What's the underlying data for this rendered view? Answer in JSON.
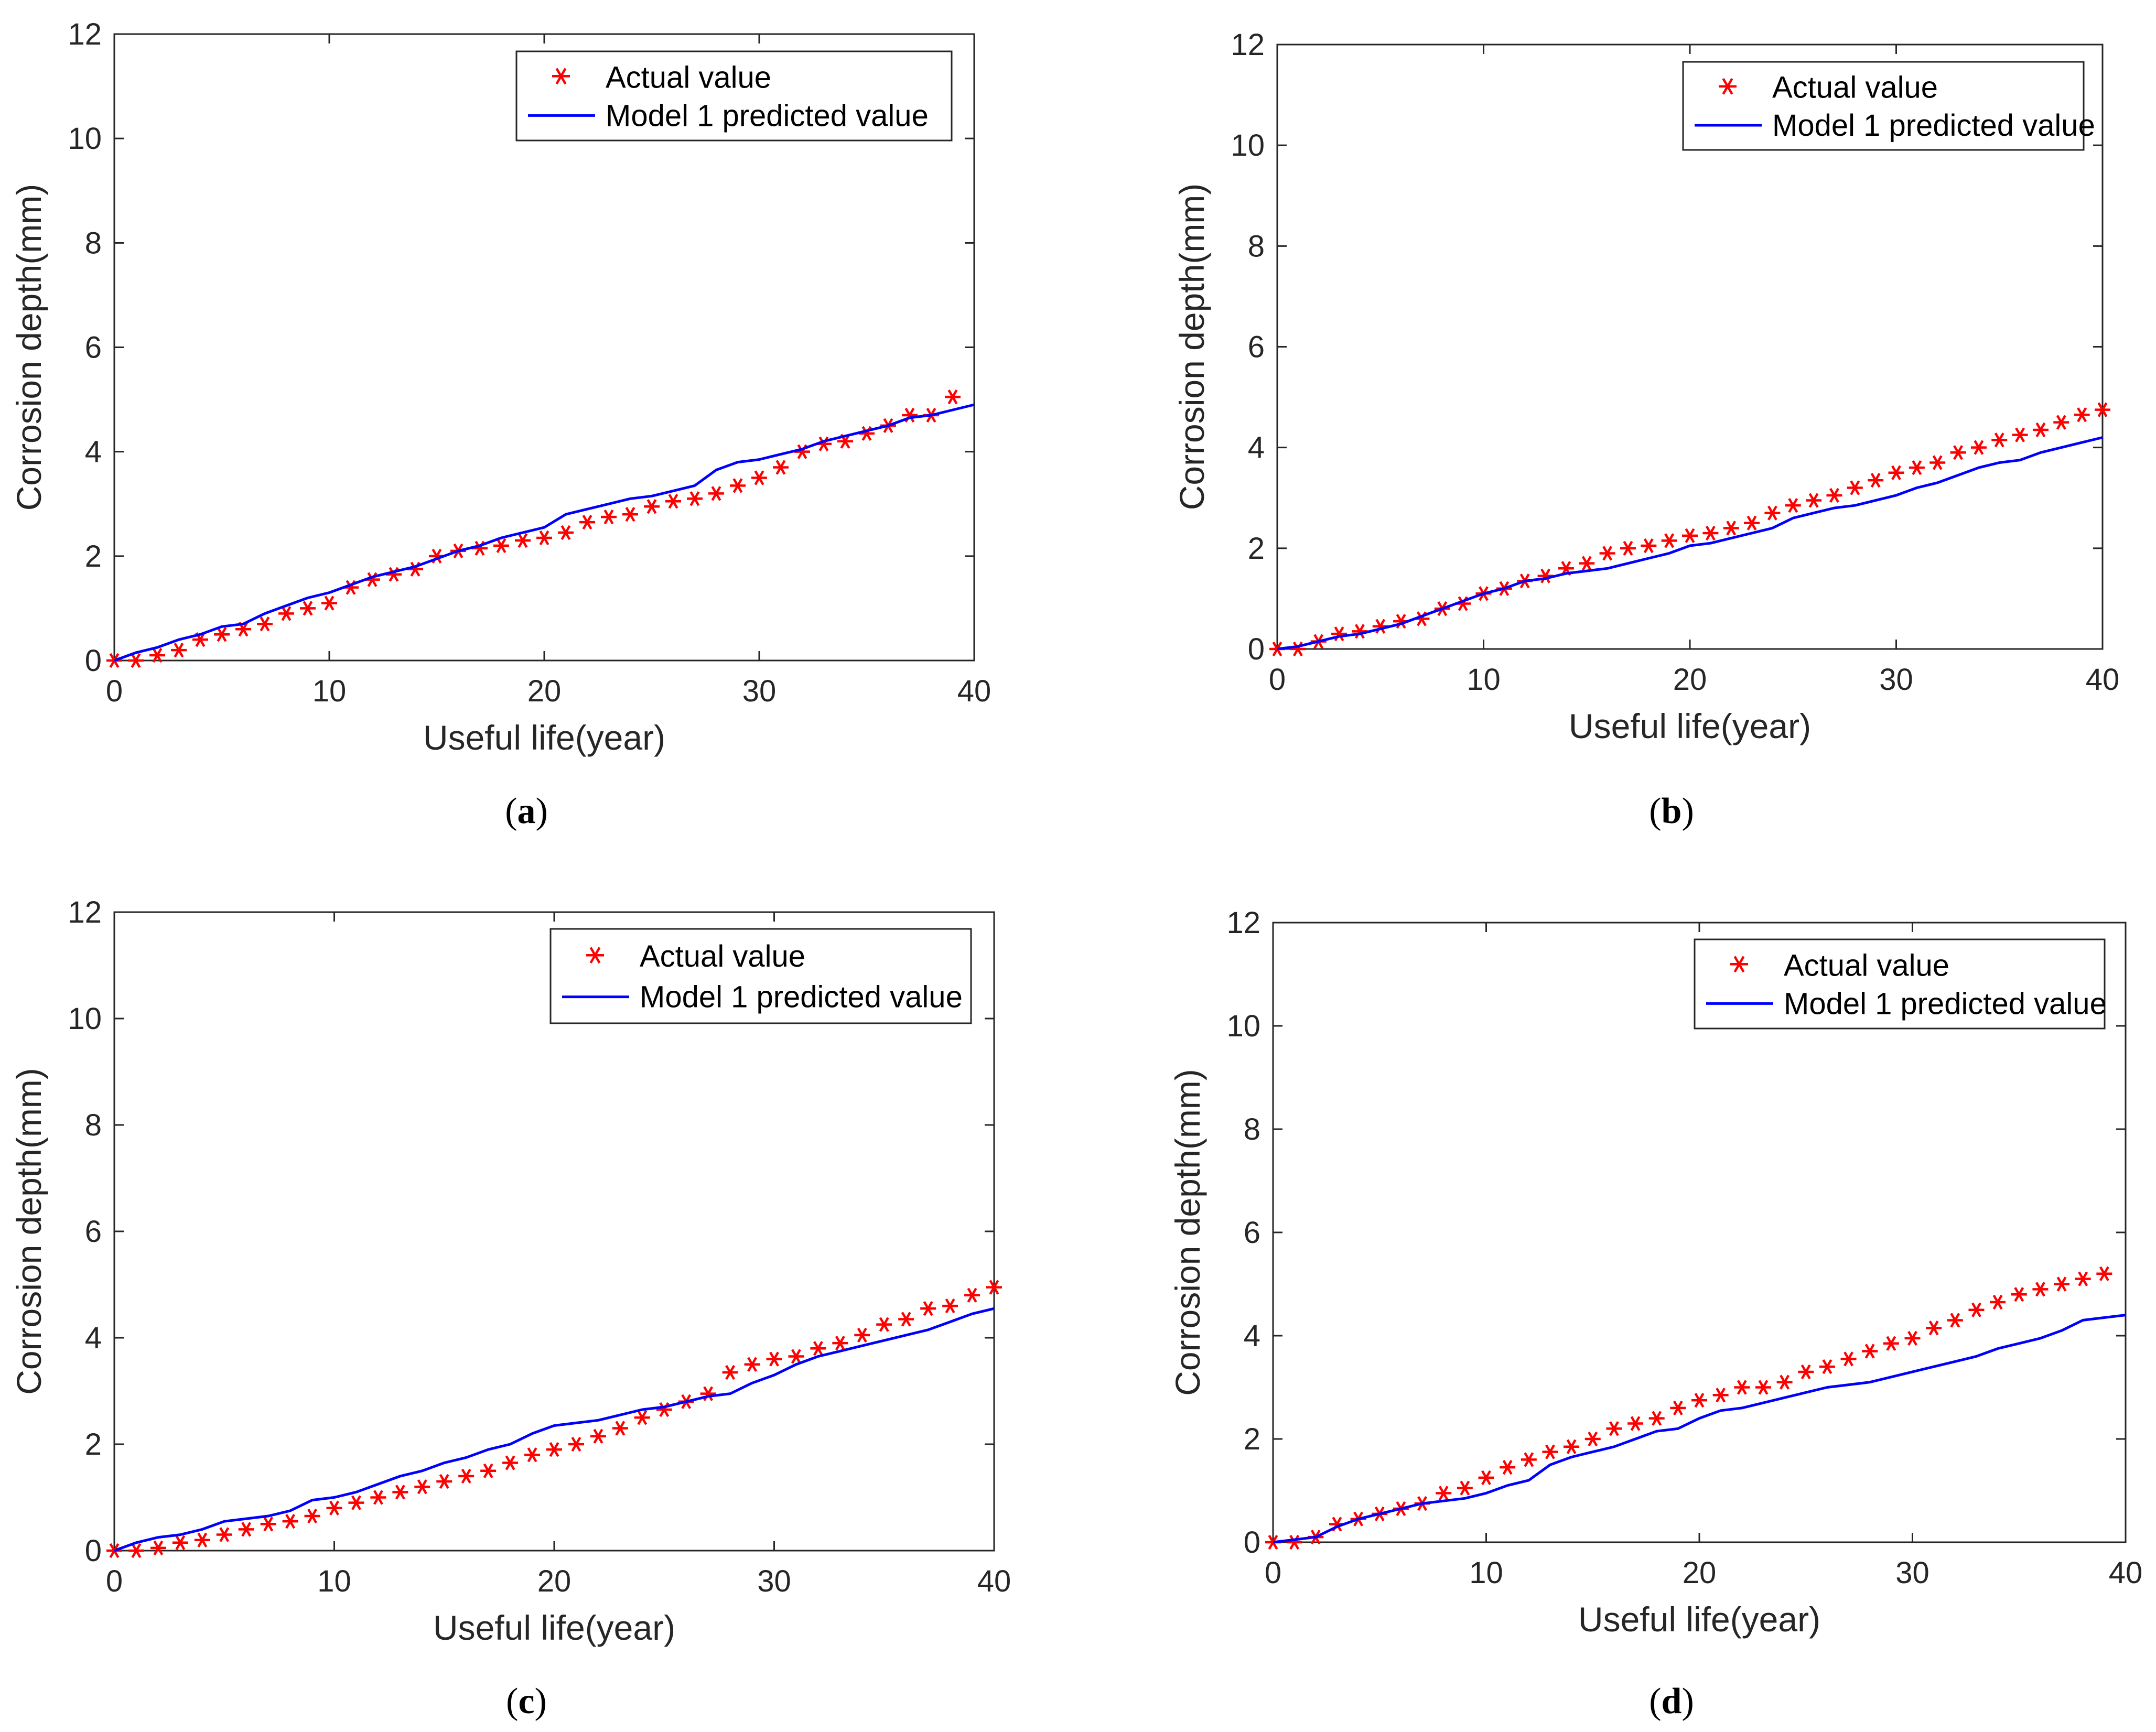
{
  "figure": {
    "colors": {
      "actual": "#ff0000",
      "predicted": "#0000ff",
      "axis": "#262626"
    }
  },
  "chart_data": [
    {
      "type": "line",
      "panel": "a",
      "caption": {
        "open": "(",
        "letter": "a",
        "close": ")"
      },
      "xlabel": "Useful life(year)",
      "ylabel": "Corrosion depth(mm)",
      "xlim": [
        0,
        40
      ],
      "ylim": [
        0,
        12
      ],
      "xticks": [
        0,
        10,
        20,
        30,
        40
      ],
      "yticks": [
        0,
        2,
        4,
        6,
        8,
        10,
        12
      ],
      "legend": {
        "position": "top-right",
        "actual_label": "Actual value",
        "predicted_label": "Model 1 predicted value"
      },
      "series": [
        {
          "name": "Actual value",
          "marker": "asterisk",
          "color": "#ff0000",
          "x": [
            0,
            1,
            2,
            3,
            4,
            5,
            6,
            7,
            8,
            9,
            10,
            11,
            12,
            13,
            14,
            15,
            16,
            17,
            18,
            19,
            20,
            21,
            22,
            23,
            24,
            25,
            26,
            27,
            28,
            29,
            30,
            31,
            32,
            33,
            34,
            35,
            36,
            37,
            38,
            39
          ],
          "values": [
            0,
            0,
            0.1,
            0.2,
            0.4,
            0.5,
            0.6,
            0.7,
            0.9,
            1.0,
            1.1,
            1.4,
            1.55,
            1.65,
            1.75,
            2.0,
            2.1,
            2.15,
            2.2,
            2.3,
            2.35,
            2.45,
            2.65,
            2.75,
            2.8,
            2.95,
            3.05,
            3.1,
            3.2,
            3.35,
            3.5,
            3.7,
            4.0,
            4.15,
            4.2,
            4.35,
            4.5,
            4.7,
            4.7,
            5.05
          ]
        },
        {
          "name": "Model 1 predicted value",
          "line": "solid",
          "color": "#0000ff",
          "x": [
            0,
            1,
            2,
            3,
            4,
            5,
            6,
            7,
            8,
            9,
            10,
            11,
            12,
            13,
            14,
            15,
            16,
            17,
            18,
            19,
            20,
            21,
            22,
            23,
            24,
            25,
            26,
            27,
            28,
            29,
            30,
            31,
            32,
            33,
            34,
            35,
            36,
            37,
            38,
            39,
            40
          ],
          "values": [
            0,
            0.15,
            0.25,
            0.4,
            0.5,
            0.65,
            0.7,
            0.9,
            1.05,
            1.2,
            1.3,
            1.45,
            1.6,
            1.7,
            1.8,
            1.95,
            2.1,
            2.2,
            2.35,
            2.45,
            2.55,
            2.8,
            2.9,
            3.0,
            3.1,
            3.15,
            3.25,
            3.35,
            3.65,
            3.8,
            3.85,
            3.95,
            4.05,
            4.2,
            4.3,
            4.4,
            4.5,
            4.65,
            4.7,
            4.8,
            4.9
          ]
        }
      ]
    },
    {
      "type": "line",
      "panel": "b",
      "caption": {
        "open": "(",
        "letter": "b",
        "close": ")"
      },
      "xlabel": "Useful life(year)",
      "ylabel": "Corrosion depth(mm)",
      "xlim": [
        0,
        40
      ],
      "ylim": [
        0,
        12
      ],
      "xticks": [
        0,
        10,
        20,
        30,
        40
      ],
      "yticks": [
        0,
        2,
        4,
        6,
        8,
        10,
        12
      ],
      "legend": {
        "position": "top-right",
        "actual_label": "Actual value",
        "predicted_label": "Model 1 predicted value"
      },
      "series": [
        {
          "name": "Actual value",
          "marker": "asterisk",
          "color": "#ff0000",
          "x": [
            0,
            1,
            2,
            3,
            4,
            5,
            6,
            7,
            8,
            9,
            10,
            11,
            12,
            13,
            14,
            15,
            16,
            17,
            18,
            19,
            20,
            21,
            22,
            23,
            24,
            25,
            26,
            27,
            28,
            29,
            30,
            31,
            32,
            33,
            34,
            35,
            36,
            37,
            38,
            39,
            40
          ],
          "values": [
            0,
            0,
            0.15,
            0.3,
            0.35,
            0.45,
            0.55,
            0.6,
            0.8,
            0.9,
            1.1,
            1.2,
            1.35,
            1.45,
            1.6,
            1.7,
            1.9,
            2.0,
            2.05,
            2.15,
            2.25,
            2.3,
            2.4,
            2.5,
            2.7,
            2.85,
            2.95,
            3.05,
            3.2,
            3.35,
            3.5,
            3.6,
            3.7,
            3.9,
            4.0,
            4.15,
            4.25,
            4.35,
            4.5,
            4.65,
            4.75
          ]
        },
        {
          "name": "Model 1 predicted value",
          "line": "solid",
          "color": "#0000ff",
          "x": [
            0,
            1,
            2,
            3,
            4,
            5,
            6,
            7,
            8,
            9,
            10,
            11,
            12,
            13,
            14,
            15,
            16,
            17,
            18,
            19,
            20,
            21,
            22,
            23,
            24,
            25,
            26,
            27,
            28,
            29,
            30,
            31,
            32,
            33,
            34,
            35,
            36,
            37,
            38,
            39,
            40
          ],
          "values": [
            0,
            0.05,
            0.15,
            0.25,
            0.3,
            0.4,
            0.5,
            0.65,
            0.8,
            0.95,
            1.1,
            1.2,
            1.35,
            1.4,
            1.5,
            1.55,
            1.6,
            1.7,
            1.8,
            1.9,
            2.05,
            2.1,
            2.2,
            2.3,
            2.4,
            2.6,
            2.7,
            2.8,
            2.85,
            2.95,
            3.05,
            3.2,
            3.3,
            3.45,
            3.6,
            3.7,
            3.75,
            3.9,
            4.0,
            4.1,
            4.2
          ]
        }
      ]
    },
    {
      "type": "line",
      "panel": "c",
      "caption": {
        "open": "(",
        "letter": "c",
        "close": ")"
      },
      "xlabel": "Useful life(year)",
      "ylabel": "Corrosion depth(mm)",
      "xlim": [
        0,
        40
      ],
      "ylim": [
        0,
        12
      ],
      "xticks": [
        0,
        10,
        20,
        30,
        40
      ],
      "yticks": [
        0,
        2,
        4,
        6,
        8,
        10,
        12
      ],
      "legend": {
        "position": "top-right",
        "actual_label": "Actual value",
        "predicted_label": "Model 1 predicted value"
      },
      "series": [
        {
          "name": "Actual value",
          "marker": "asterisk",
          "color": "#ff0000",
          "x": [
            0,
            1,
            2,
            3,
            4,
            5,
            6,
            7,
            8,
            9,
            10,
            11,
            12,
            13,
            14,
            15,
            16,
            17,
            18,
            19,
            20,
            21,
            22,
            23,
            24,
            25,
            26,
            27,
            28,
            29,
            30,
            31,
            32,
            33,
            34,
            35,
            36,
            37,
            38,
            39,
            40
          ],
          "values": [
            0,
            0,
            0.05,
            0.15,
            0.2,
            0.3,
            0.4,
            0.5,
            0.55,
            0.65,
            0.8,
            0.9,
            1.0,
            1.1,
            1.2,
            1.3,
            1.4,
            1.5,
            1.65,
            1.8,
            1.9,
            2.0,
            2.15,
            2.3,
            2.5,
            2.65,
            2.8,
            2.95,
            3.35,
            3.5,
            3.6,
            3.65,
            3.8,
            3.9,
            4.05,
            4.25,
            4.35,
            4.55,
            4.6,
            4.8,
            4.95
          ]
        },
        {
          "name": "Model 1 predicted value",
          "line": "solid",
          "color": "#0000ff",
          "x": [
            0,
            1,
            2,
            3,
            4,
            5,
            6,
            7,
            8,
            9,
            10,
            11,
            12,
            13,
            14,
            15,
            16,
            17,
            18,
            19,
            20,
            21,
            22,
            23,
            24,
            25,
            26,
            27,
            28,
            29,
            30,
            31,
            32,
            33,
            34,
            35,
            36,
            37,
            38,
            39,
            40
          ],
          "values": [
            0,
            0.15,
            0.25,
            0.3,
            0.4,
            0.55,
            0.6,
            0.65,
            0.75,
            0.95,
            1.0,
            1.1,
            1.25,
            1.4,
            1.5,
            1.65,
            1.75,
            1.9,
            2.0,
            2.2,
            2.35,
            2.4,
            2.45,
            2.55,
            2.65,
            2.7,
            2.8,
            2.9,
            2.95,
            3.15,
            3.3,
            3.5,
            3.65,
            3.75,
            3.85,
            3.95,
            4.05,
            4.15,
            4.3,
            4.45,
            4.55
          ]
        }
      ]
    },
    {
      "type": "line",
      "panel": "d",
      "caption": {
        "open": "(",
        "letter": "d",
        "close": ")"
      },
      "xlabel": "Useful life(year)",
      "ylabel": "Corrosion depth(mm)",
      "xlim": [
        0,
        40
      ],
      "ylim": [
        0,
        12
      ],
      "xticks": [
        0,
        10,
        20,
        30,
        40
      ],
      "yticks": [
        0,
        2,
        4,
        6,
        8,
        10,
        12
      ],
      "legend": {
        "position": "top-right",
        "actual_label": "Actual value",
        "predicted_label": "Model 1 predicted value"
      },
      "series": [
        {
          "name": "Actual value",
          "marker": "asterisk",
          "color": "#ff0000",
          "x": [
            0,
            1,
            2,
            3,
            4,
            5,
            6,
            7,
            8,
            9,
            10,
            11,
            12,
            13,
            14,
            15,
            16,
            17,
            18,
            19,
            20,
            21,
            22,
            23,
            24,
            25,
            26,
            27,
            28,
            29,
            30,
            31,
            32,
            33,
            34,
            35,
            36,
            37,
            38,
            39
          ],
          "values": [
            0,
            0,
            0.1,
            0.35,
            0.45,
            0.55,
            0.65,
            0.75,
            0.95,
            1.05,
            1.25,
            1.45,
            1.6,
            1.75,
            1.85,
            2.0,
            2.2,
            2.3,
            2.4,
            2.6,
            2.75,
            2.85,
            3.0,
            3.0,
            3.1,
            3.3,
            3.4,
            3.55,
            3.7,
            3.85,
            3.95,
            4.15,
            4.3,
            4.5,
            4.65,
            4.8,
            4.9,
            5.0,
            5.1,
            5.2
          ]
        },
        {
          "name": "Model 1 predicted value",
          "line": "solid",
          "color": "#0000ff",
          "x": [
            0,
            1,
            2,
            3,
            4,
            5,
            6,
            7,
            8,
            9,
            10,
            11,
            12,
            13,
            14,
            15,
            16,
            17,
            18,
            19,
            20,
            21,
            22,
            23,
            24,
            25,
            26,
            27,
            28,
            29,
            30,
            31,
            32,
            33,
            34,
            35,
            36,
            37,
            38,
            39,
            40
          ],
          "values": [
            0,
            0.05,
            0.1,
            0.3,
            0.45,
            0.55,
            0.65,
            0.75,
            0.8,
            0.85,
            0.95,
            1.1,
            1.2,
            1.5,
            1.65,
            1.75,
            1.85,
            2.0,
            2.15,
            2.2,
            2.4,
            2.55,
            2.6,
            2.7,
            2.8,
            2.9,
            3.0,
            3.05,
            3.1,
            3.2,
            3.3,
            3.4,
            3.5,
            3.6,
            3.75,
            3.85,
            3.95,
            4.1,
            4.3,
            4.35,
            4.4
          ]
        }
      ]
    }
  ]
}
